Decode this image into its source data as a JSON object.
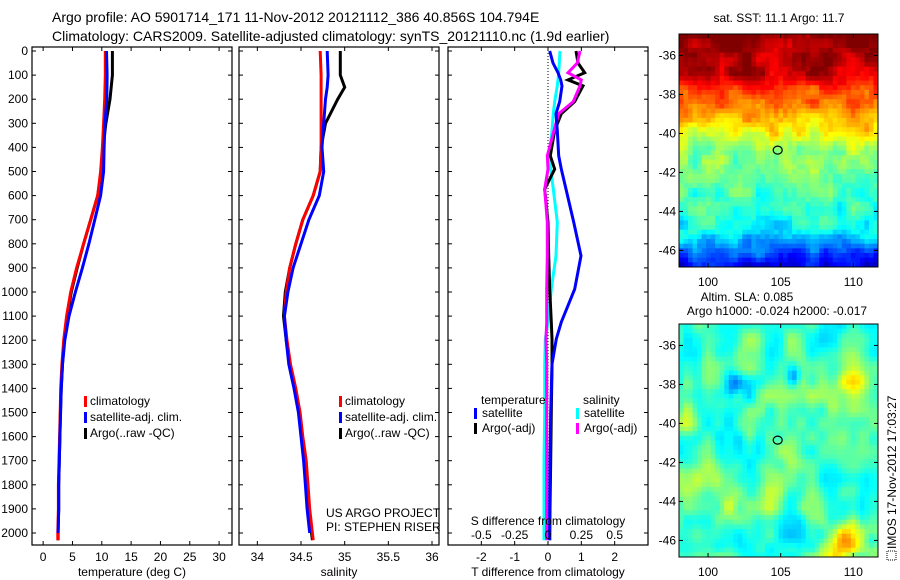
{
  "header": {
    "title_line1": "Argo profile: AO 5901714_171 11-Nov-2012 20121112_386 40.856S 104.794E",
    "title_line2": "Climatology: CARS2009. Satellite-adjusted climatology: synTS_20121110.nc (1.9d earlier)"
  },
  "credits": {
    "project": "US ARGO PROJECT",
    "pi": "PI: STEPHEN RISER",
    "stamp": "IMOS 17-Nov-2012 17:03:27"
  },
  "colors": {
    "climatology": "#ff0000",
    "satellite": "#0000ff",
    "argo": "#000000",
    "sal_satellite": "#00ffff",
    "sal_argo": "#ff00ff"
  },
  "chart_data": [
    {
      "type": "line",
      "id": "temperature",
      "xlabel": "temperature (deg C)",
      "ylabel": "",
      "xlim": [
        -1.9,
        32.2
      ],
      "ylim": [
        2050,
        -17
      ],
      "xticks": [
        "0",
        "5",
        "10",
        "15",
        "20",
        "25",
        "30"
      ],
      "yticks": [
        "0",
        "100",
        "200",
        "300",
        "400",
        "500",
        "600",
        "700",
        "800",
        "900",
        "1000",
        "1100",
        "1200",
        "1300",
        "1400",
        "1500",
        "1600",
        "1700",
        "1800",
        "1900",
        "2000"
      ],
      "depth": [
        0,
        100,
        200,
        300,
        400,
        500,
        600,
        700,
        800,
        900,
        1000,
        1100,
        1200,
        1300,
        1400,
        1500,
        1600,
        1700,
        1800,
        1900,
        2000,
        2030
      ],
      "legend": [
        "climatology",
        "satellite-adj. clim.",
        "Argo(..raw -QC)"
      ],
      "series": [
        {
          "name": "Argo(..raw -QC)",
          "color": "#000000",
          "values": [
            11.8,
            11.8,
            11.4,
            10.7,
            10.2,
            9.9,
            9.3,
            8.1,
            6.9,
            5.8,
            4.8,
            4.1,
            3.6,
            3.3,
            3.1,
            2.95,
            2.85,
            2.75,
            2.65,
            2.65,
            2.55,
            2.55
          ]
        },
        {
          "name": "climatology",
          "color": "#ff0000",
          "values": [
            10.6,
            10.6,
            10.5,
            10.3,
            10.1,
            9.8,
            9.3,
            8.1,
            6.9,
            5.7,
            4.7,
            4.0,
            3.5,
            3.2,
            3.0,
            2.9,
            2.8,
            2.7,
            2.6,
            2.6,
            2.5,
            2.5
          ]
        },
        {
          "name": "satellite-adj. clim.",
          "color": "#0000ff",
          "values": [
            10.8,
            10.9,
            10.85,
            10.55,
            10.4,
            10.3,
            9.8,
            8.8,
            7.8,
            6.7,
            5.5,
            4.4,
            3.7,
            3.3,
            3.08,
            2.97,
            2.86,
            2.76,
            2.66,
            2.65,
            2.55,
            null
          ]
        }
      ]
    },
    {
      "type": "line",
      "id": "salinity",
      "xlabel": "salinity",
      "xlim": [
        33.79,
        36.08
      ],
      "ylim": [
        2050,
        -17
      ],
      "xticks": [
        "34",
        "34.5",
        "35",
        "35.5",
        "36"
      ],
      "depth": [
        0,
        100,
        150,
        200,
        300,
        400,
        500,
        600,
        700,
        800,
        900,
        1000,
        1100,
        1200,
        1300,
        1400,
        1500,
        1600,
        1700,
        1800,
        1900,
        2000,
        2030
      ],
      "legend": [
        "climatology",
        "satellite-adj. clim.",
        "Argo(..raw -QC)"
      ],
      "series": [
        {
          "name": "Argo(..raw -QC)",
          "color": "#000000",
          "values": [
            34.95,
            34.95,
            35.0,
            34.92,
            34.78,
            34.73,
            34.72,
            34.64,
            34.52,
            34.44,
            34.37,
            34.32,
            34.3,
            34.33,
            34.37,
            34.43,
            34.48,
            34.51,
            34.55,
            34.57,
            34.59,
            34.62,
            34.63
          ]
        },
        {
          "name": "climatology",
          "color": "#ff0000",
          "values": [
            34.72,
            34.73,
            34.73,
            34.73,
            34.73,
            34.73,
            34.72,
            34.64,
            34.52,
            34.44,
            34.37,
            34.33,
            34.31,
            34.34,
            34.38,
            34.44,
            34.49,
            34.52,
            34.56,
            34.58,
            34.6,
            34.63,
            34.64
          ]
        },
        {
          "name": "satellite-adj. clim.",
          "color": "#0000ff",
          "values": [
            34.8,
            34.81,
            34.8,
            34.78,
            34.76,
            34.74,
            34.76,
            34.71,
            34.59,
            34.5,
            34.41,
            34.35,
            34.31,
            34.33,
            34.36,
            34.42,
            34.47,
            34.5,
            34.53,
            34.55,
            34.57,
            34.6,
            null
          ]
        }
      ]
    },
    {
      "type": "line",
      "id": "difference",
      "xlabel": "T difference from climatology",
      "x2label": "S difference from climatology",
      "xlim": [
        -3,
        3
      ],
      "x2lim": [
        -0.75,
        0.75
      ],
      "ylim": [
        2050,
        -17
      ],
      "xticks": [
        "-2",
        "-1",
        "0",
        "1",
        "2"
      ],
      "x2ticks": [
        "-0.5",
        "-0.25",
        "0",
        "0.25",
        "0.5"
      ],
      "legend_temperature_title": "temperature",
      "legend_salinity_title": "salinity",
      "depth": [
        0,
        50,
        90,
        120,
        145,
        210,
        260,
        330,
        435,
        490,
        573,
        710,
        850,
        988,
        1125,
        1195,
        1300,
        1500,
        1700,
        1900,
        2030
      ],
      "series": [
        {
          "name": "salinity satellite",
          "label": "satellite",
          "axis": "S",
          "color": "#00ffff",
          "values": [
            0.09,
            0.085,
            0.08,
            0.075,
            0.07,
            0.05,
            0.04,
            0.03,
            0.01,
            0.02,
            0.04,
            0.07,
            0.06,
            0.025,
            0.0,
            -0.02,
            -0.025,
            -0.025,
            -0.03,
            -0.03,
            -0.03
          ]
        },
        {
          "name": "temperature Argo(-adj)",
          "label": "Argo(-adj)",
          "axis": "T",
          "color": "#000000",
          "values": [
            0.84,
            0.9,
            1.1,
            0.6,
            1.05,
            0.8,
            0.4,
            0.2,
            0.07,
            0.2,
            -0.1,
            0,
            0.02,
            0.05,
            0.1,
            0.12,
            0.12,
            0.1,
            0.08,
            0.06,
            0.05
          ]
        },
        {
          "name": "salinity Argo(-adj)",
          "label": "Argo(-adj)",
          "axis": "S",
          "color": "#ff00ff",
          "values": [
            0.24,
            0.22,
            0.15,
            0.25,
            0.24,
            0.19,
            0.08,
            0.045,
            -0.005,
            0.0,
            -0.025,
            -0.005,
            -0.005,
            -0.01,
            -0.01,
            -0.015,
            -0.01,
            -0.01,
            -0.01,
            -0.01,
            -0.01
          ]
        },
        {
          "name": "temperature satellite",
          "label": "satellite",
          "axis": "T",
          "color": "#0000ff",
          "values": [
            0.05,
            0.15,
            0.3,
            0.38,
            0.42,
            0.35,
            0.24,
            0.28,
            0.32,
            0.4,
            0.54,
            0.77,
            0.99,
            0.8,
            0.4,
            0.25,
            0.12,
            0.08,
            0.06,
            0.05,
            0.05
          ]
        }
      ]
    },
    {
      "type": "heatmap",
      "id": "sst_map",
      "title": "sat. SST: 11.1 Argo: 11.7",
      "xlim": [
        98.0,
        111.7
      ],
      "ylim": [
        -46.85,
        -34.9
      ],
      "xticks": [
        "100",
        "105",
        "110"
      ],
      "yticks": [
        "-36",
        "-38",
        "-40",
        "-42",
        "-44",
        "-46"
      ],
      "marker": {
        "lon": 104.794,
        "lat": -40.856
      }
    },
    {
      "type": "heatmap",
      "id": "sla_map",
      "title": "Altim. SLA: 0.085",
      "subtitle": "Argo h1000: -0.024 h2000: -0.017",
      "xlim": [
        98.0,
        111.7
      ],
      "ylim": [
        -46.85,
        -34.9
      ],
      "xticks": [
        "100",
        "105",
        "110"
      ],
      "yticks": [
        "-36",
        "-38",
        "-40",
        "-42",
        "-44",
        "-46"
      ],
      "marker": {
        "lon": 104.794,
        "lat": -40.856
      }
    }
  ]
}
